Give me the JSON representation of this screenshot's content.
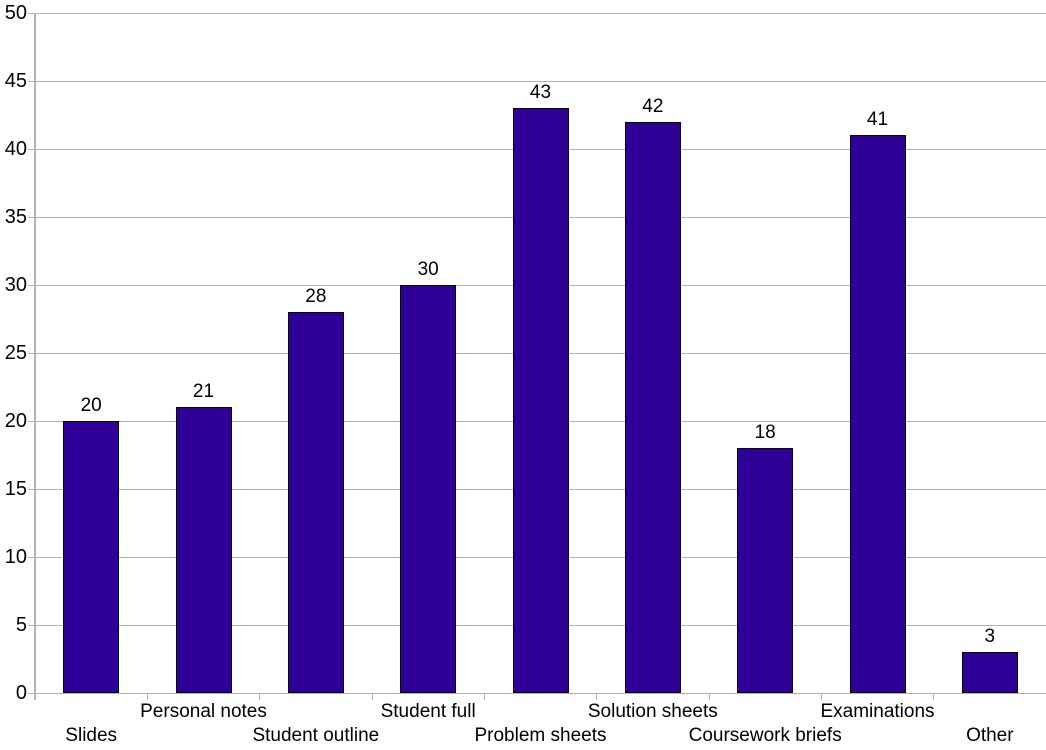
{
  "chart_data": {
    "type": "bar",
    "categories": [
      "Slides",
      "Personal notes",
      "Student outline",
      "Student full",
      "Problem sheets",
      "Solution sheets",
      "Coursework briefs",
      "Examinations",
      "Other"
    ],
    "values": [
      20,
      21,
      28,
      30,
      43,
      42,
      18,
      41,
      3
    ],
    "data_labels": [
      "20",
      "21",
      "28",
      "30",
      "43",
      "42",
      "18",
      "41",
      "3"
    ],
    "title": "",
    "xlabel": "",
    "ylabel": "",
    "ylim": [
      0,
      50
    ],
    "yticks": [
      0,
      5,
      10,
      15,
      20,
      25,
      30,
      35,
      40,
      45,
      50
    ],
    "grid": true,
    "legend_position": "none",
    "category_label_stagger": "odd-indices-upper-row"
  },
  "colors": {
    "bar_fill": "#2e0098",
    "bar_border": "#000000",
    "gridline": "#b3b3b3",
    "axis": "#b3b3b3",
    "text": "#000000",
    "background": "#ffffff"
  }
}
